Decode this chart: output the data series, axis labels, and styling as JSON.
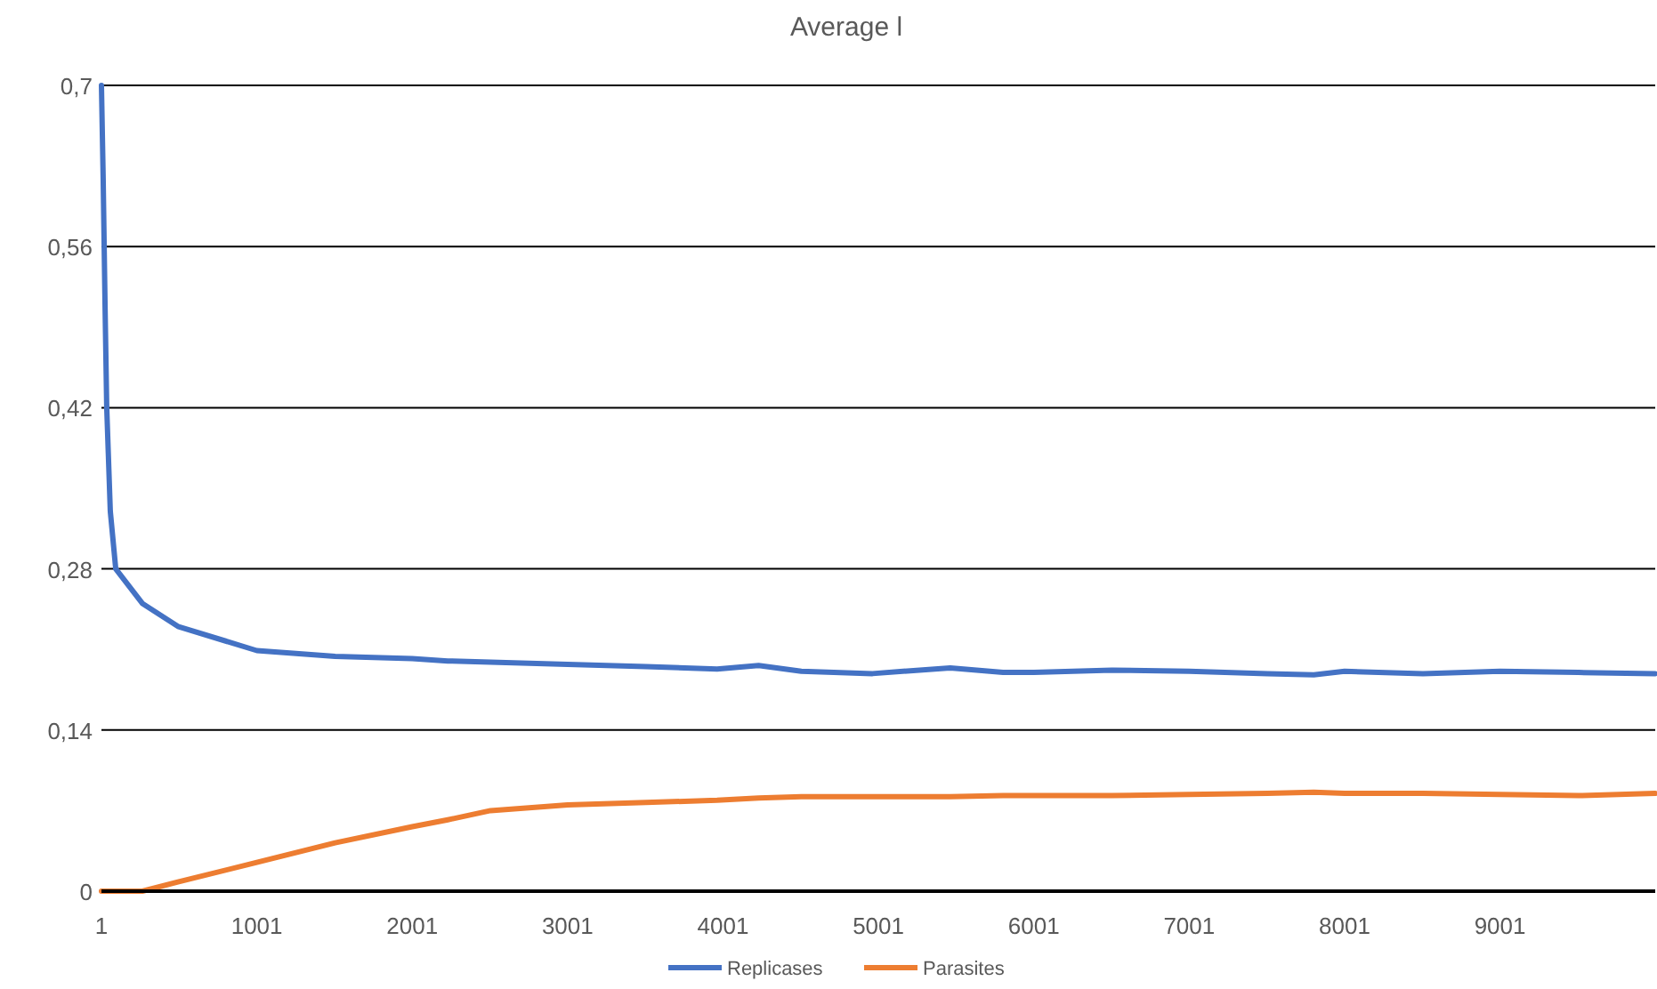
{
  "chart_data": {
    "type": "line",
    "title": "Average l",
    "x": [
      1,
      12,
      24,
      35,
      58,
      93,
      264,
      493,
      1001,
      1505,
      2001,
      2230,
      2505,
      3001,
      3505,
      3963,
      4230,
      4505,
      4963,
      5463,
      5803,
      6001,
      6505,
      7001,
      7505,
      7803,
      8001,
      8505,
      9001,
      9505,
      10000
    ],
    "series": [
      {
        "name": "Replicases",
        "color": "#4472c4",
        "values": [
          0.7,
          0.62,
          0.51,
          0.42,
          0.33,
          0.28,
          0.25,
          0.23,
          0.209,
          0.204,
          0.202,
          0.2,
          0.199,
          0.197,
          0.195,
          0.193,
          0.196,
          0.191,
          0.189,
          0.194,
          0.19,
          0.19,
          0.192,
          0.191,
          0.189,
          0.188,
          0.191,
          0.189,
          0.191,
          0.19,
          0.189
        ]
      },
      {
        "name": "Parasites",
        "color": "#ed7d31",
        "values": [
          0,
          0,
          0,
          0,
          0,
          0,
          0,
          0.008,
          0.025,
          0.042,
          0.056,
          0.062,
          0.07,
          0.075,
          0.077,
          0.079,
          0.081,
          0.082,
          0.082,
          0.082,
          0.083,
          0.083,
          0.083,
          0.084,
          0.085,
          0.086,
          0.085,
          0.085,
          0.084,
          0.083,
          0.085
        ]
      }
    ],
    "xlim": [
      1,
      10000
    ],
    "xticks": [
      1,
      1001,
      2001,
      3001,
      4001,
      5001,
      6001,
      7001,
      8001,
      9001
    ],
    "ylim": [
      0,
      0.7
    ],
    "yticks": [
      {
        "value": 0,
        "label": "0"
      },
      {
        "value": 0.14,
        "label": "0,14"
      },
      {
        "value": 0.28,
        "label": "0,28"
      },
      {
        "value": 0.42,
        "label": "0,42"
      },
      {
        "value": 0.56,
        "label": "0,56"
      },
      {
        "value": 0.7,
        "label": "0,7"
      }
    ],
    "grid": "y",
    "legend": "bottom",
    "marker": "none",
    "line_style": "solid"
  }
}
